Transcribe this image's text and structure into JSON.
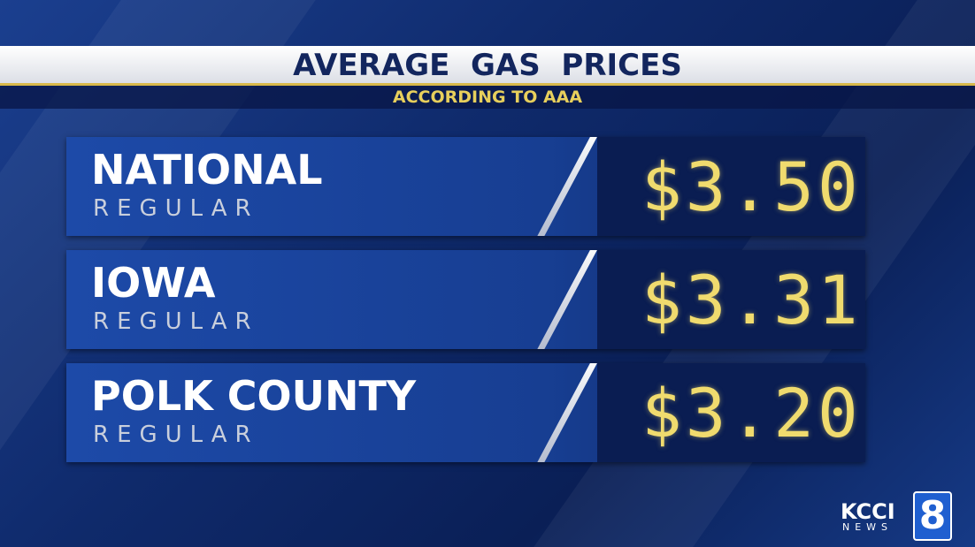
{
  "header": {
    "title": "AVERAGE  GAS  PRICES",
    "subtitle": "ACCORDING TO AAA"
  },
  "rows": [
    {
      "label": "NATIONAL",
      "sublabel": "REGULAR",
      "price": "$3.50"
    },
    {
      "label": "IOWA",
      "sublabel": "REGULAR",
      "price": "$3.31"
    },
    {
      "label": "POLK COUNTY",
      "sublabel": "REGULAR",
      "price": "$3.20"
    }
  ],
  "logo": {
    "name": "KCCI",
    "news": "NEWS",
    "channel": "8"
  }
}
